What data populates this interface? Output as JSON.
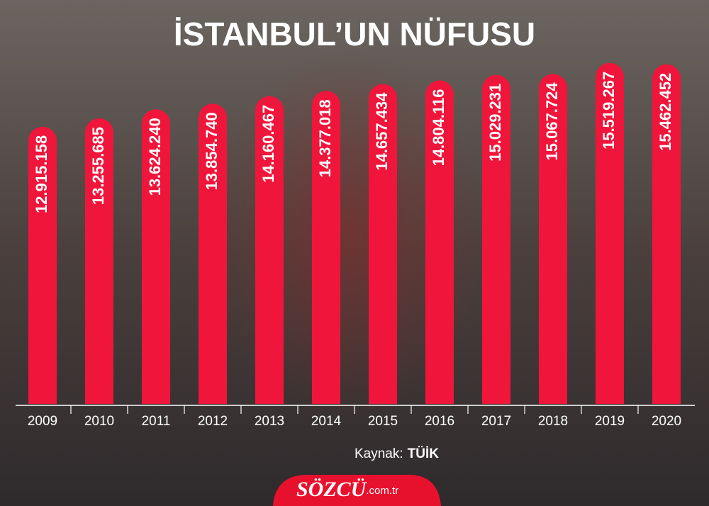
{
  "chart_data": {
    "type": "bar",
    "title": "İSTANBUL’UN NÜFUSU",
    "categories": [
      "2009",
      "2010",
      "2011",
      "2012",
      "2013",
      "2014",
      "2015",
      "2016",
      "2017",
      "2018",
      "2019",
      "2020"
    ],
    "values": [
      12915158,
      13255685,
      13624240,
      13854740,
      14160467,
      14377018,
      14657434,
      14804116,
      15029231,
      15067724,
      15519267,
      15462452
    ],
    "value_labels": [
      "12.915.158",
      "13.255.685",
      "13.624.240",
      "13.854.740",
      "14.160.467",
      "14.377.018",
      "14.657.434",
      "14.804.116",
      "15.029.231",
      "15.067.724",
      "15.519.267",
      "15.462.452"
    ],
    "color": "#f0153a",
    "ylim": [
      1600000,
      15600000
    ]
  },
  "source": {
    "label": "Kaynak:",
    "value": "TÜİK"
  },
  "logo": {
    "name": "SÖZCÜ",
    "domain": ".com.tr"
  }
}
